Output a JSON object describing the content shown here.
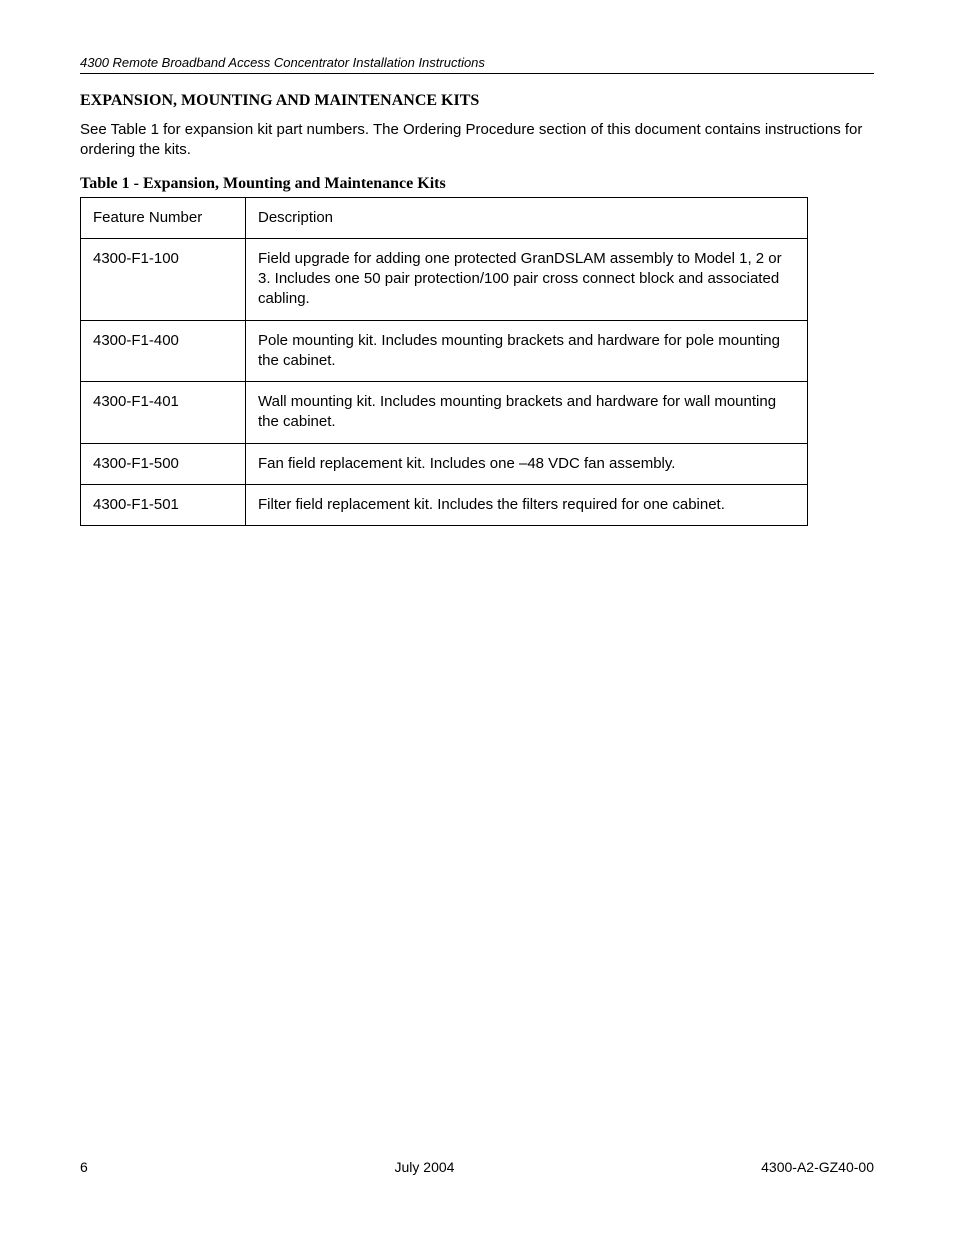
{
  "header": {
    "doc_title": "4300 Remote Broadband Access Concentrator  Installation Instructions"
  },
  "section": {
    "heading": "EXPANSION, MOUNTING AND MAINTENANCE KITS",
    "intro": "See Table 1 for expansion kit part numbers. The Ordering Procedure section of this document contains instructions for ordering the kits."
  },
  "table": {
    "caption": "Table 1 - Expansion, Mounting and Maintenance Kits",
    "columns": [
      "Feature Number",
      "Description"
    ],
    "rows": [
      [
        "4300-F1-100",
        "Field upgrade for adding one protected GranDSLAM assembly to Model 1, 2 or 3. Includes one 50 pair protection/100 pair cross connect block and associated cabling."
      ],
      [
        "4300-F1-400",
        "Pole mounting kit. Includes mounting brackets and hardware for pole mounting the cabinet."
      ],
      [
        "4300-F1-401",
        "Wall mounting kit. Includes mounting brackets and hardware for wall mounting the cabinet."
      ],
      [
        "4300-F1-500",
        "Fan field replacement kit. Includes one –48 VDC fan assembly."
      ],
      [
        "4300-F1-501",
        "Filter field replacement kit. Includes the filters required for one cabinet."
      ]
    ]
  },
  "footer": {
    "page_number": "6",
    "date": "July 2004",
    "doc_id": "4300-A2-GZ40-00"
  }
}
